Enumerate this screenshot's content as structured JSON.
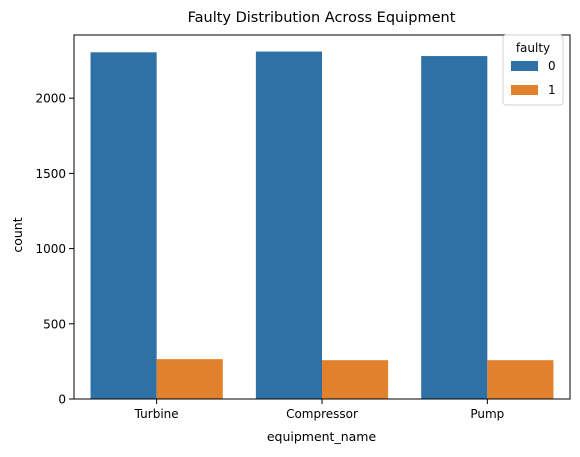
{
  "chart_data": {
    "type": "bar",
    "title": "Faulty Distribution Across Equipment",
    "xlabel": "equipment_name",
    "ylabel": "count",
    "categories": [
      "Turbine",
      "Compressor",
      "Pump"
    ],
    "series": [
      {
        "name": "0",
        "values": [
          2305,
          2310,
          2280
        ],
        "color": "#2e71a7"
      },
      {
        "name": "1",
        "values": [
          265,
          258,
          258
        ],
        "color": "#e1812b"
      }
    ],
    "ylim": [
      0,
      2420
    ],
    "yticks": [
      0,
      500,
      1000,
      1500,
      2000
    ],
    "legend": {
      "title": "faulty",
      "position": "top-right"
    },
    "grid": false
  }
}
